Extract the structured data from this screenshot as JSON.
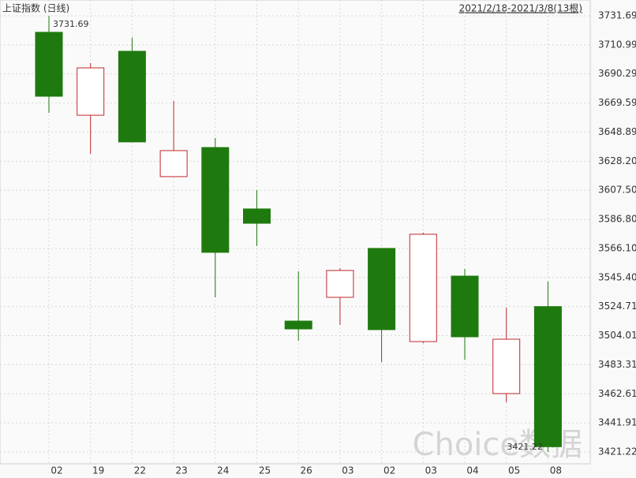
{
  "chart_data": {
    "type": "candlestick",
    "title": "上证指数 (日线)",
    "subtitle": "2021/2/18-2021/3/8(13根)",
    "watermark": "Choice数据",
    "categories": [
      "02",
      "19",
      "22",
      "23",
      "24",
      "25",
      "26",
      "03",
      "02",
      "03",
      "04",
      "05",
      "08"
    ],
    "open": [
      3719.9,
      3660.9,
      3706.4,
      3617.2,
      3637.9,
      3594.2,
      3514.4,
      3531.3,
      3566.1,
      3499.8,
      3546.4,
      3462.8,
      3524.7
    ],
    "high": [
      3731.69,
      3698.0,
      3716.0,
      3671.1,
      3644.7,
      3607.6,
      3549.8,
      3552.0,
      3566.1,
      3577.3,
      3551.5,
      3524.0,
      3542.5
    ],
    "low": [
      3662.6,
      3633.4,
      3641.9,
      3617.2,
      3531.3,
      3567.8,
      3500.4,
      3511.6,
      3485.2,
      3498.7,
      3486.9,
      3456.6,
      3421.22
    ],
    "close": [
      3674.4,
      3694.6,
      3641.9,
      3635.7,
      3563.3,
      3584.0,
      3508.8,
      3550.4,
      3508.3,
      3576.2,
      3503.2,
      3501.5,
      3425.0
    ],
    "up_color": "#c0272d",
    "down_color": "#1e7a0e",
    "max_label": "3731.69",
    "min_label": "3421.22",
    "ylim": [
      3411.7,
      3738.4
    ],
    "yticks": [
      3731.69,
      3710.99,
      3690.29,
      3669.59,
      3648.89,
      {
        "value": 3628.2,
        "label": "3628.20"
      },
      {
        "value": 3607.5,
        "label": "3607.50"
      },
      {
        "value": 3586.8,
        "label": "3586.80"
      },
      {
        "value": 3566.1,
        "label": "3566.10"
      },
      {
        "value": 3545.4,
        "label": "3545.40"
      },
      3524.71,
      3504.01,
      3483.31,
      3462.61,
      3441.91,
      3421.22
    ],
    "grid": true
  }
}
